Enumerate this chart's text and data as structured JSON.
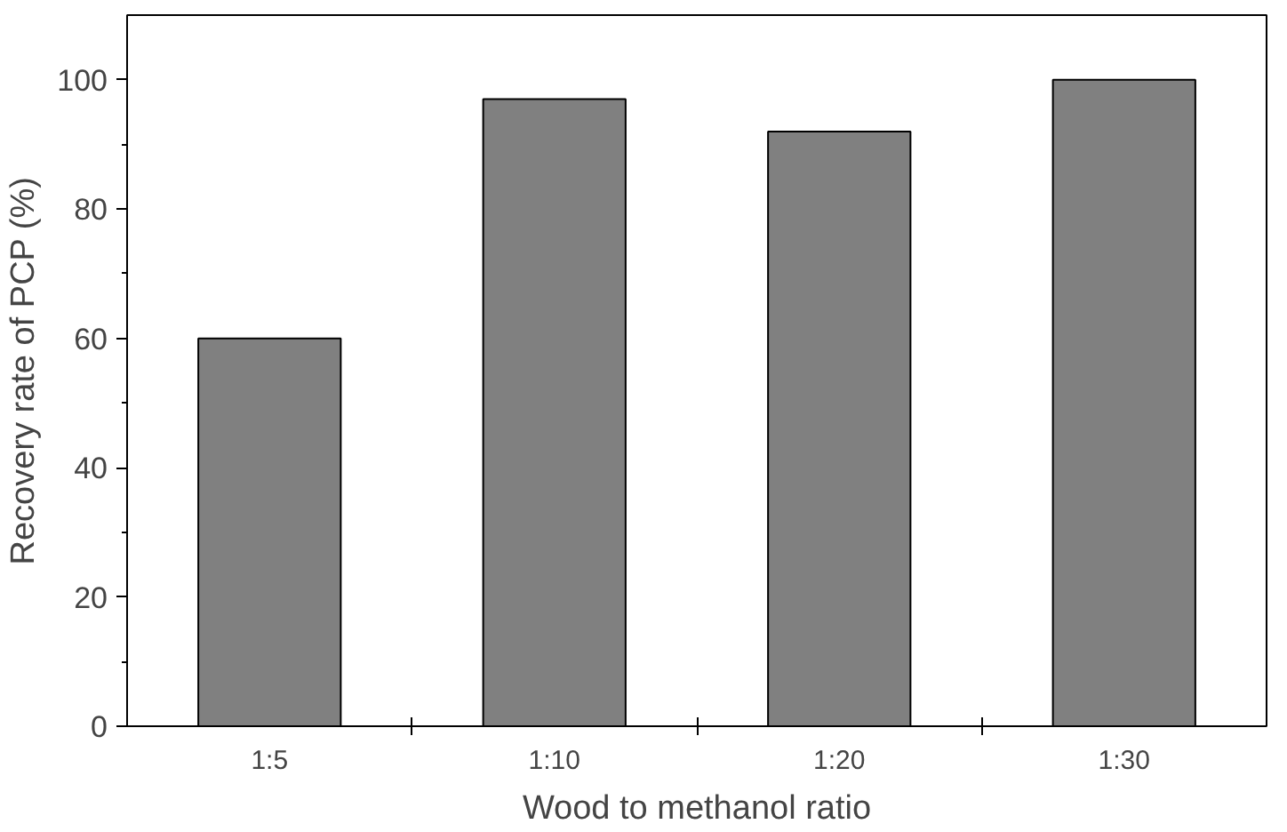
{
  "chart_data": {
    "type": "bar",
    "xlabel": "Wood to methanol ratio",
    "ylabel": "Recovery rate of PCP (%)",
    "categories": [
      "1:5",
      "1:10",
      "1:20",
      "1:30"
    ],
    "values": [
      60,
      97,
      92,
      100
    ],
    "color": "#808080",
    "ylim": [
      0,
      110
    ],
    "yticks": [
      0,
      20,
      40,
      60,
      80,
      100
    ],
    "grid": false
  }
}
